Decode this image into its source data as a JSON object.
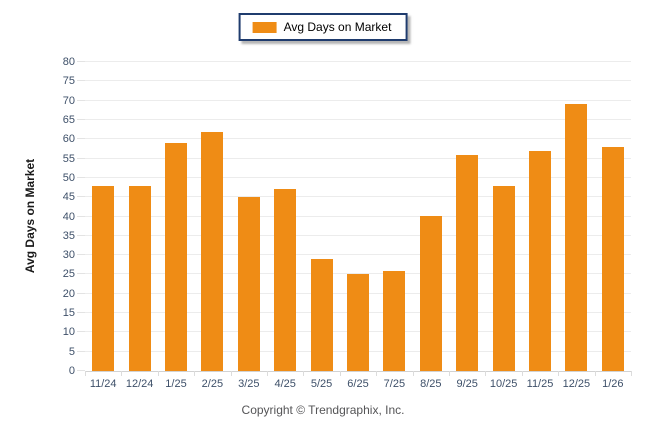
{
  "legend": {
    "label": "Avg Days on Market",
    "swatch_color": "#ef8c15"
  },
  "footer": {
    "text": "Copyright © Trendgraphix, Inc."
  },
  "colors": {
    "bar": "#ef8c15",
    "legend_border": "#1f3c6e",
    "axis_label": "#3e5069",
    "gridline": "#ececec"
  },
  "chart_data": {
    "type": "bar",
    "title": "Avg Days on Market",
    "xlabel": "",
    "ylabel": "Avg Days on Market",
    "categories": [
      "11/24",
      "12/24",
      "1/25",
      "2/25",
      "3/25",
      "4/25",
      "5/25",
      "6/25",
      "7/25",
      "8/25",
      "9/25",
      "10/25",
      "11/25",
      "12/25",
      "1/26"
    ],
    "values": [
      48,
      48,
      59,
      62,
      45,
      47,
      29,
      25,
      26,
      40,
      56,
      48,
      57,
      69,
      58
    ],
    "ylim": [
      0,
      80
    ],
    "ytick_step": 5,
    "yticks": [
      0,
      5,
      10,
      15,
      20,
      25,
      30,
      35,
      40,
      45,
      50,
      55,
      60,
      65,
      70,
      75,
      80
    ],
    "grid": "horizontal",
    "legend_position": "top-center"
  }
}
